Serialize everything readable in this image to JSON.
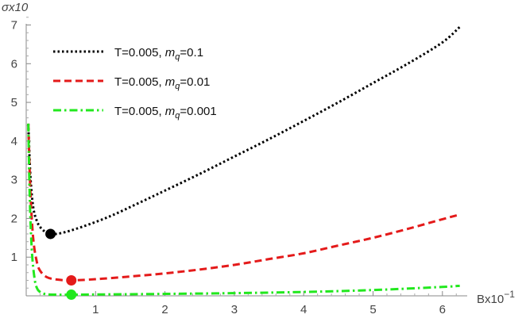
{
  "chart_data": {
    "type": "line",
    "xlabel": "Bx10",
    "xlabel_exp": "−1",
    "ylabel": "σx10",
    "xlim": [
      0,
      6.3
    ],
    "ylim": [
      0,
      7.4
    ],
    "xticks": [
      1,
      2,
      3,
      4,
      5,
      6
    ],
    "yticks": [
      1,
      2,
      3,
      4,
      5,
      6,
      7
    ],
    "grid": false,
    "legend_position": "top-left",
    "series": [
      {
        "name": "T=0.005, m_q=0.1",
        "legend_prefix": "T=0.005, ",
        "legend_m": "m",
        "legend_sub": "q",
        "legend_suffix": "=0.1",
        "color": "#000000",
        "style": "dotted",
        "x": [
          0.03,
          0.06,
          0.1,
          0.15,
          0.2,
          0.27,
          0.35,
          0.5,
          0.8,
          1.2,
          1.6,
          2.0,
          2.5,
          3.0,
          3.5,
          4.0,
          4.5,
          5.0,
          5.5,
          6.0,
          6.25
        ],
        "y": [
          4.45,
          3.1,
          2.3,
          1.95,
          1.78,
          1.66,
          1.6,
          1.62,
          1.78,
          2.05,
          2.38,
          2.72,
          3.15,
          3.6,
          4.05,
          4.52,
          5.0,
          5.5,
          6.0,
          6.55,
          6.95
        ],
        "marker": {
          "x": 0.35,
          "y": 1.6
        }
      },
      {
        "name": "T=0.005, m_q=0.01",
        "legend_prefix": "T=0.005, ",
        "legend_m": "m",
        "legend_sub": "q",
        "legend_suffix": "=0.01",
        "color": "#e41a1a",
        "style": "dashed",
        "x": [
          0.03,
          0.06,
          0.1,
          0.15,
          0.2,
          0.3,
          0.45,
          0.65,
          1.0,
          1.5,
          2.0,
          2.5,
          3.0,
          3.5,
          4.0,
          4.5,
          5.0,
          5.5,
          6.0,
          6.25
        ],
        "y": [
          4.45,
          2.7,
          1.5,
          0.9,
          0.65,
          0.48,
          0.42,
          0.4,
          0.43,
          0.5,
          0.58,
          0.68,
          0.8,
          0.95,
          1.1,
          1.3,
          1.5,
          1.73,
          1.98,
          2.1
        ],
        "marker": {
          "x": 0.65,
          "y": 0.4
        }
      },
      {
        "name": "T=0.005, m_q=0.001",
        "legend_prefix": "T=0.005, ",
        "legend_m": "m",
        "legend_sub": "q",
        "legend_suffix": "=0.001",
        "color": "#22e81e",
        "style": "dashdot",
        "x": [
          0.03,
          0.05,
          0.08,
          0.12,
          0.16,
          0.22,
          0.3,
          0.45,
          0.65,
          1.0,
          2.0,
          3.0,
          4.0,
          5.0,
          6.0,
          6.25
        ],
        "y": [
          4.45,
          2.6,
          1.2,
          0.45,
          0.18,
          0.08,
          0.04,
          0.03,
          0.03,
          0.035,
          0.05,
          0.07,
          0.1,
          0.15,
          0.23,
          0.26
        ],
        "marker": {
          "x": 0.65,
          "y": 0.03
        }
      }
    ]
  }
}
